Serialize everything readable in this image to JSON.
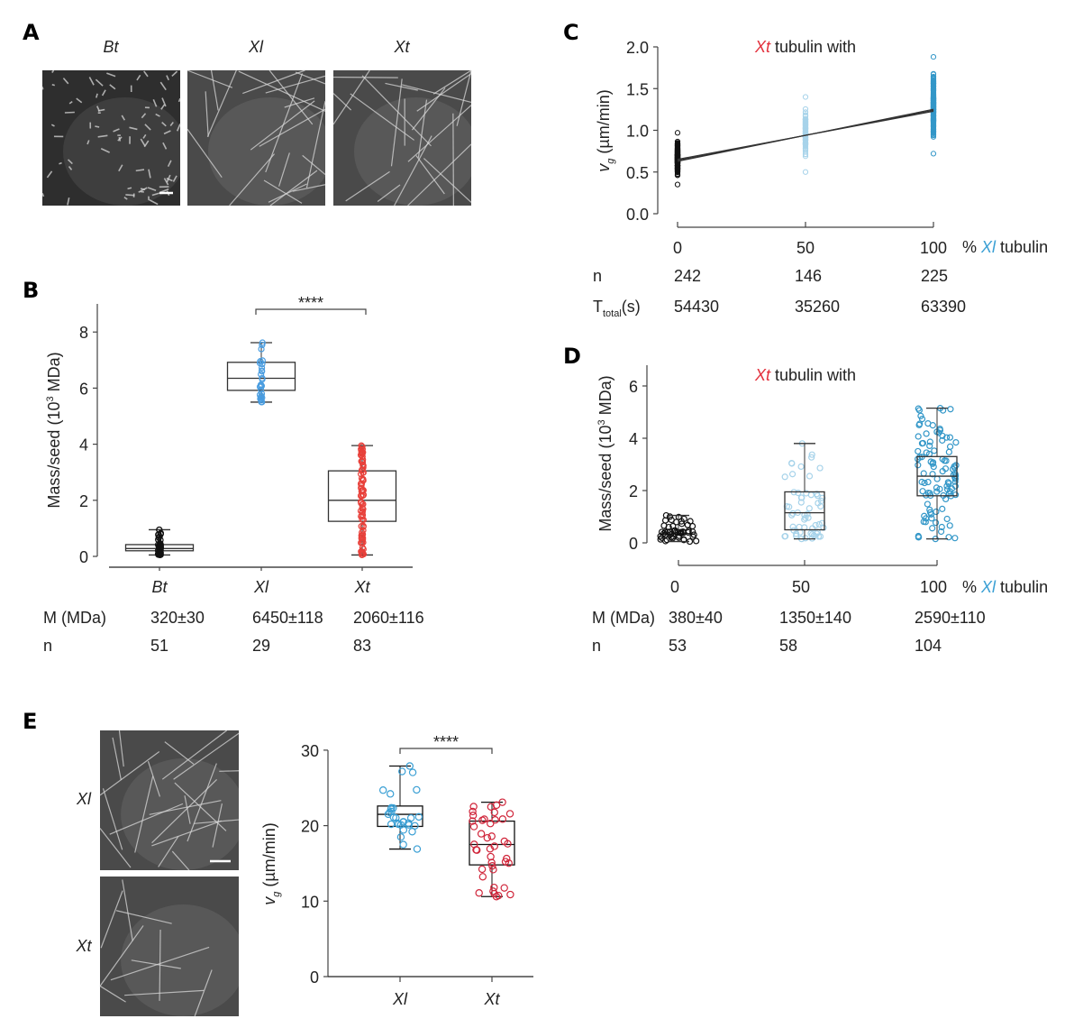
{
  "panel_labels": [
    "A",
    "B",
    "C",
    "D",
    "E"
  ],
  "colors": {
    "bt": "#111111",
    "xl": "#3a9fd4",
    "xl_light": "#a7d3ea",
    "xl_dark": "#3397c8",
    "xt": "#e3303c",
    "xt_dark": "#d0253a"
  },
  "panel_a": {
    "image_labels": [
      "Bt",
      "Xl",
      "Xt"
    ],
    "scale_bar": true
  },
  "panel_e": {
    "image_labels": [
      "Xl",
      "Xt"
    ],
    "scale_bar": true
  },
  "chart_data": [
    {
      "panel": "B",
      "type": "box",
      "categories": [
        "Bt",
        "Xl",
        "Xt"
      ],
      "ylabel": {
        "pre": "Mass/seed (10",
        "sup": "3",
        "post": " MDa)"
      },
      "ylim": [
        0,
        9
      ],
      "yticks": [
        "0",
        "2",
        "4",
        "6",
        "8"
      ],
      "boxes": [
        {
          "min": 0.05,
          "q1": 0.2,
          "median": 0.28,
          "q3": 0.42,
          "max": 0.95
        },
        {
          "min": 5.5,
          "q1": 5.92,
          "median": 6.35,
          "q3": 6.92,
          "max": 7.62
        },
        {
          "min": 0.05,
          "q1": 1.25,
          "median": 2.0,
          "q3": 3.05,
          "max": 3.95
        }
      ],
      "significance": {
        "between": [
          "Xl",
          "Xt"
        ],
        "label": "****"
      },
      "table": [
        {
          "label": "M (MDa)",
          "values": [
            "320±30",
            "6450±118",
            "2060±116"
          ]
        },
        {
          "label": "n",
          "values": [
            "51",
            "29",
            "83"
          ]
        }
      ]
    },
    {
      "panel": "C",
      "type": "scatter",
      "title": {
        "italic": "Xt",
        "rest": " tubulin with"
      },
      "ylabel": {
        "v": "v",
        "sub": "g",
        "rest": " (µm/min)"
      },
      "xlabel": {
        "pre": "% ",
        "italic": "Xl",
        "post": " tubulin"
      },
      "x": [
        "0",
        "50",
        "100"
      ],
      "ylim": [
        0,
        2.0
      ],
      "yticks": [
        "0.0",
        "0.5",
        "1.0",
        "1.5",
        "2.0"
      ],
      "ranges": [
        {
          "x": 0,
          "min": 0.35,
          "max": 0.97,
          "n": 242
        },
        {
          "x": 50,
          "min": 0.5,
          "max": 1.4,
          "n": 146
        },
        {
          "x": 100,
          "min": 0.72,
          "max": 1.88,
          "n": 225
        }
      ],
      "fit": {
        "y_at_0": 0.64,
        "y_at_100": 1.24
      },
      "table": [
        {
          "label": "n",
          "values": [
            "242",
            "146",
            "225"
          ]
        },
        {
          "label_main": "T",
          "label_sub": "total",
          "label_post": "(s)",
          "values": [
            "54430",
            "35260",
            "63390"
          ]
        }
      ]
    },
    {
      "panel": "D",
      "type": "box",
      "title": {
        "italic": "Xt",
        "rest": " tubulin with"
      },
      "ylabel": {
        "pre": "Mass/seed (10",
        "sup": "3",
        "post": " MDa)"
      },
      "xlabel": {
        "pre": "% ",
        "italic": "Xl",
        "post": " tubulin"
      },
      "categories": [
        "0",
        "50",
        "100"
      ],
      "ylim": [
        0,
        7
      ],
      "yticks": [
        "0",
        "2",
        "4",
        "6"
      ],
      "boxes": [
        {
          "min": 0.05,
          "q1": 0.2,
          "median": 0.35,
          "q3": 0.45,
          "max": 1.05
        },
        {
          "min": 0.15,
          "q1": 0.5,
          "median": 1.15,
          "q3": 1.95,
          "max": 3.8
        },
        {
          "min": 0.15,
          "q1": 1.8,
          "median": 2.55,
          "q3": 3.3,
          "max": 5.15
        }
      ],
      "table": [
        {
          "label": "M (MDa)",
          "values": [
            "380±40",
            "1350±140",
            "2590±110"
          ]
        },
        {
          "label": "n",
          "values": [
            "53",
            "58",
            "104"
          ]
        }
      ]
    },
    {
      "panel": "E",
      "type": "box",
      "categories": [
        "Xl",
        "Xt"
      ],
      "ylabel": {
        "v": "v",
        "sub": "g",
        "rest": " (µm/min)"
      },
      "ylim": [
        0,
        30
      ],
      "yticks": [
        "0",
        "10",
        "20",
        "30"
      ],
      "boxes": [
        {
          "min": 16.9,
          "q1": 19.9,
          "median": 21.5,
          "q3": 22.6,
          "max": 27.9
        },
        {
          "min": 10.6,
          "q1": 14.8,
          "median": 17.5,
          "q3": 20.6,
          "max": 23.1
        }
      ],
      "significance": {
        "between": [
          "Xl",
          "Xt"
        ],
        "label": "****"
      }
    }
  ]
}
